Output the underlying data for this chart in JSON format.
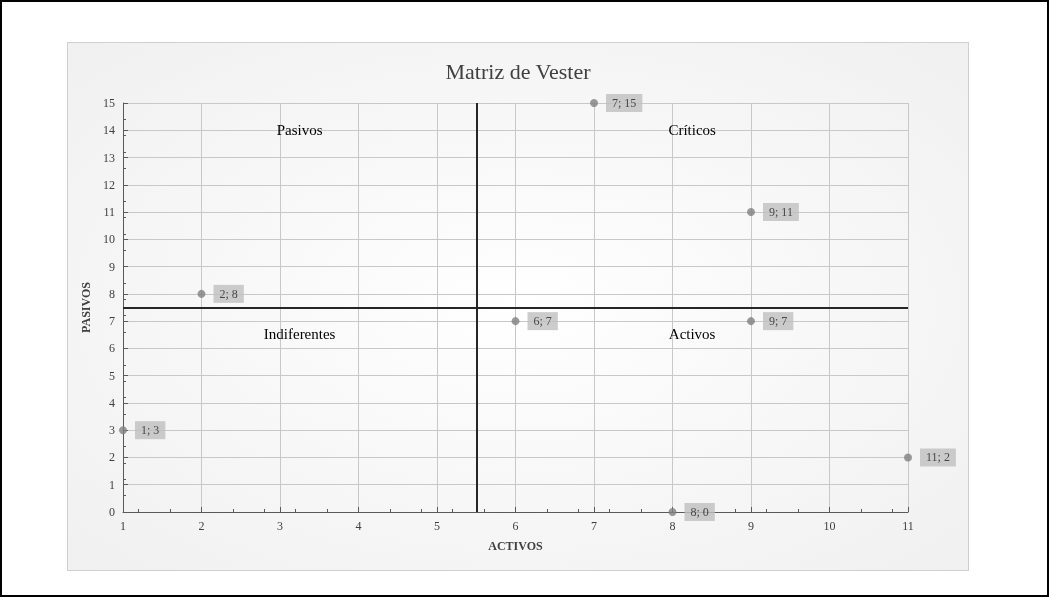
{
  "chart_data": {
    "type": "scatter",
    "title": "Matriz de Vester",
    "xlabel": "ACTIVOS",
    "ylabel": "PASIVOS",
    "x": [
      1,
      2,
      6,
      7,
      9,
      9,
      8,
      11
    ],
    "values": [
      3,
      8,
      7,
      15,
      11,
      7,
      0,
      2
    ],
    "value_labels": [
      "1; 3",
      "2; 8",
      "6; 7",
      "7; 15",
      "9; 11",
      "9; 7",
      "8; 0",
      "11; 2"
    ],
    "color": "#7f7f7f",
    "marker": "circle",
    "xlim": [
      1,
      11
    ],
    "xticks": [
      1,
      2,
      3,
      4,
      5,
      6,
      7,
      8,
      9,
      10,
      11
    ],
    "ylim": [
      0,
      15
    ],
    "yticks": [
      0,
      1,
      2,
      3,
      4,
      5,
      6,
      7,
      8,
      9,
      10,
      11,
      12,
      13,
      14,
      15
    ],
    "grid": true,
    "ref_lines": [
      {
        "axis": "x",
        "value": 5.5,
        "color": "#262626"
      },
      {
        "axis": "y",
        "value": 7.5,
        "color": "#262626"
      }
    ],
    "annotations": [
      "Pasivos",
      "Críticos",
      "Indiferentes",
      "Activos"
    ]
  }
}
